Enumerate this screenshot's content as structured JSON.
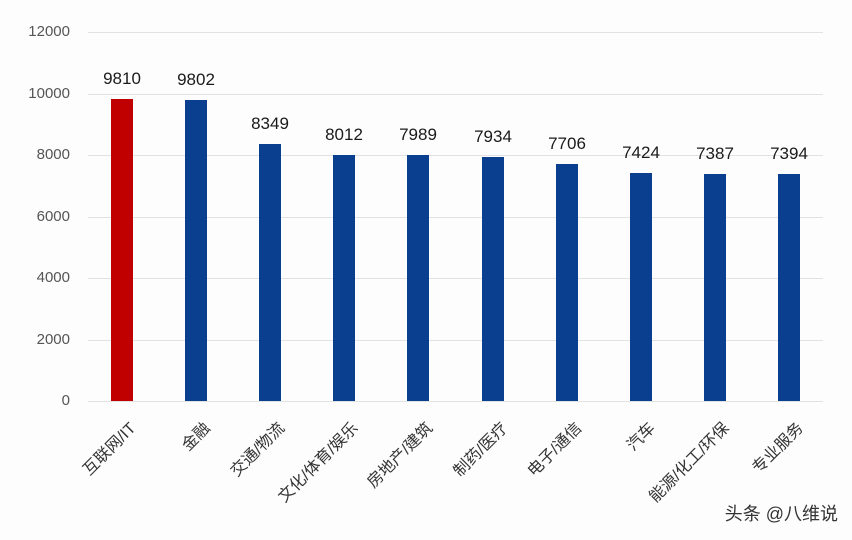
{
  "chart_data": {
    "type": "bar",
    "title": "",
    "xlabel": "",
    "ylabel": "",
    "ylim": [
      0,
      12000
    ],
    "yticks": [
      0,
      2000,
      4000,
      6000,
      8000,
      10000,
      12000
    ],
    "grid": true,
    "legend": null,
    "categories": [
      "互联网/IT",
      "金融",
      "交通/物流",
      "文化/体育/娱乐",
      "房地产/建筑",
      "制药/医疗",
      "电子/通信",
      "汽车",
      "能源/化工/环保",
      "专业服务"
    ],
    "values": [
      9810,
      9802,
      8349,
      8012,
      7989,
      7934,
      7706,
      7424,
      7387,
      7394
    ],
    "data_labels": [
      "9810",
      "9802",
      "8349",
      "8012",
      "7989",
      "7934",
      "7706",
      "7424",
      "7387",
      "7394"
    ],
    "bar_colors": [
      "#c00000",
      "#0a3f8f",
      "#0a3f8f",
      "#0a3f8f",
      "#0a3f8f",
      "#0a3f8f",
      "#0a3f8f",
      "#0a3f8f",
      "#0a3f8f",
      "#0a3f8f"
    ],
    "highlight_color": "#c00000",
    "default_color": "#0a3f8f"
  },
  "watermark": "头条 @八维说"
}
